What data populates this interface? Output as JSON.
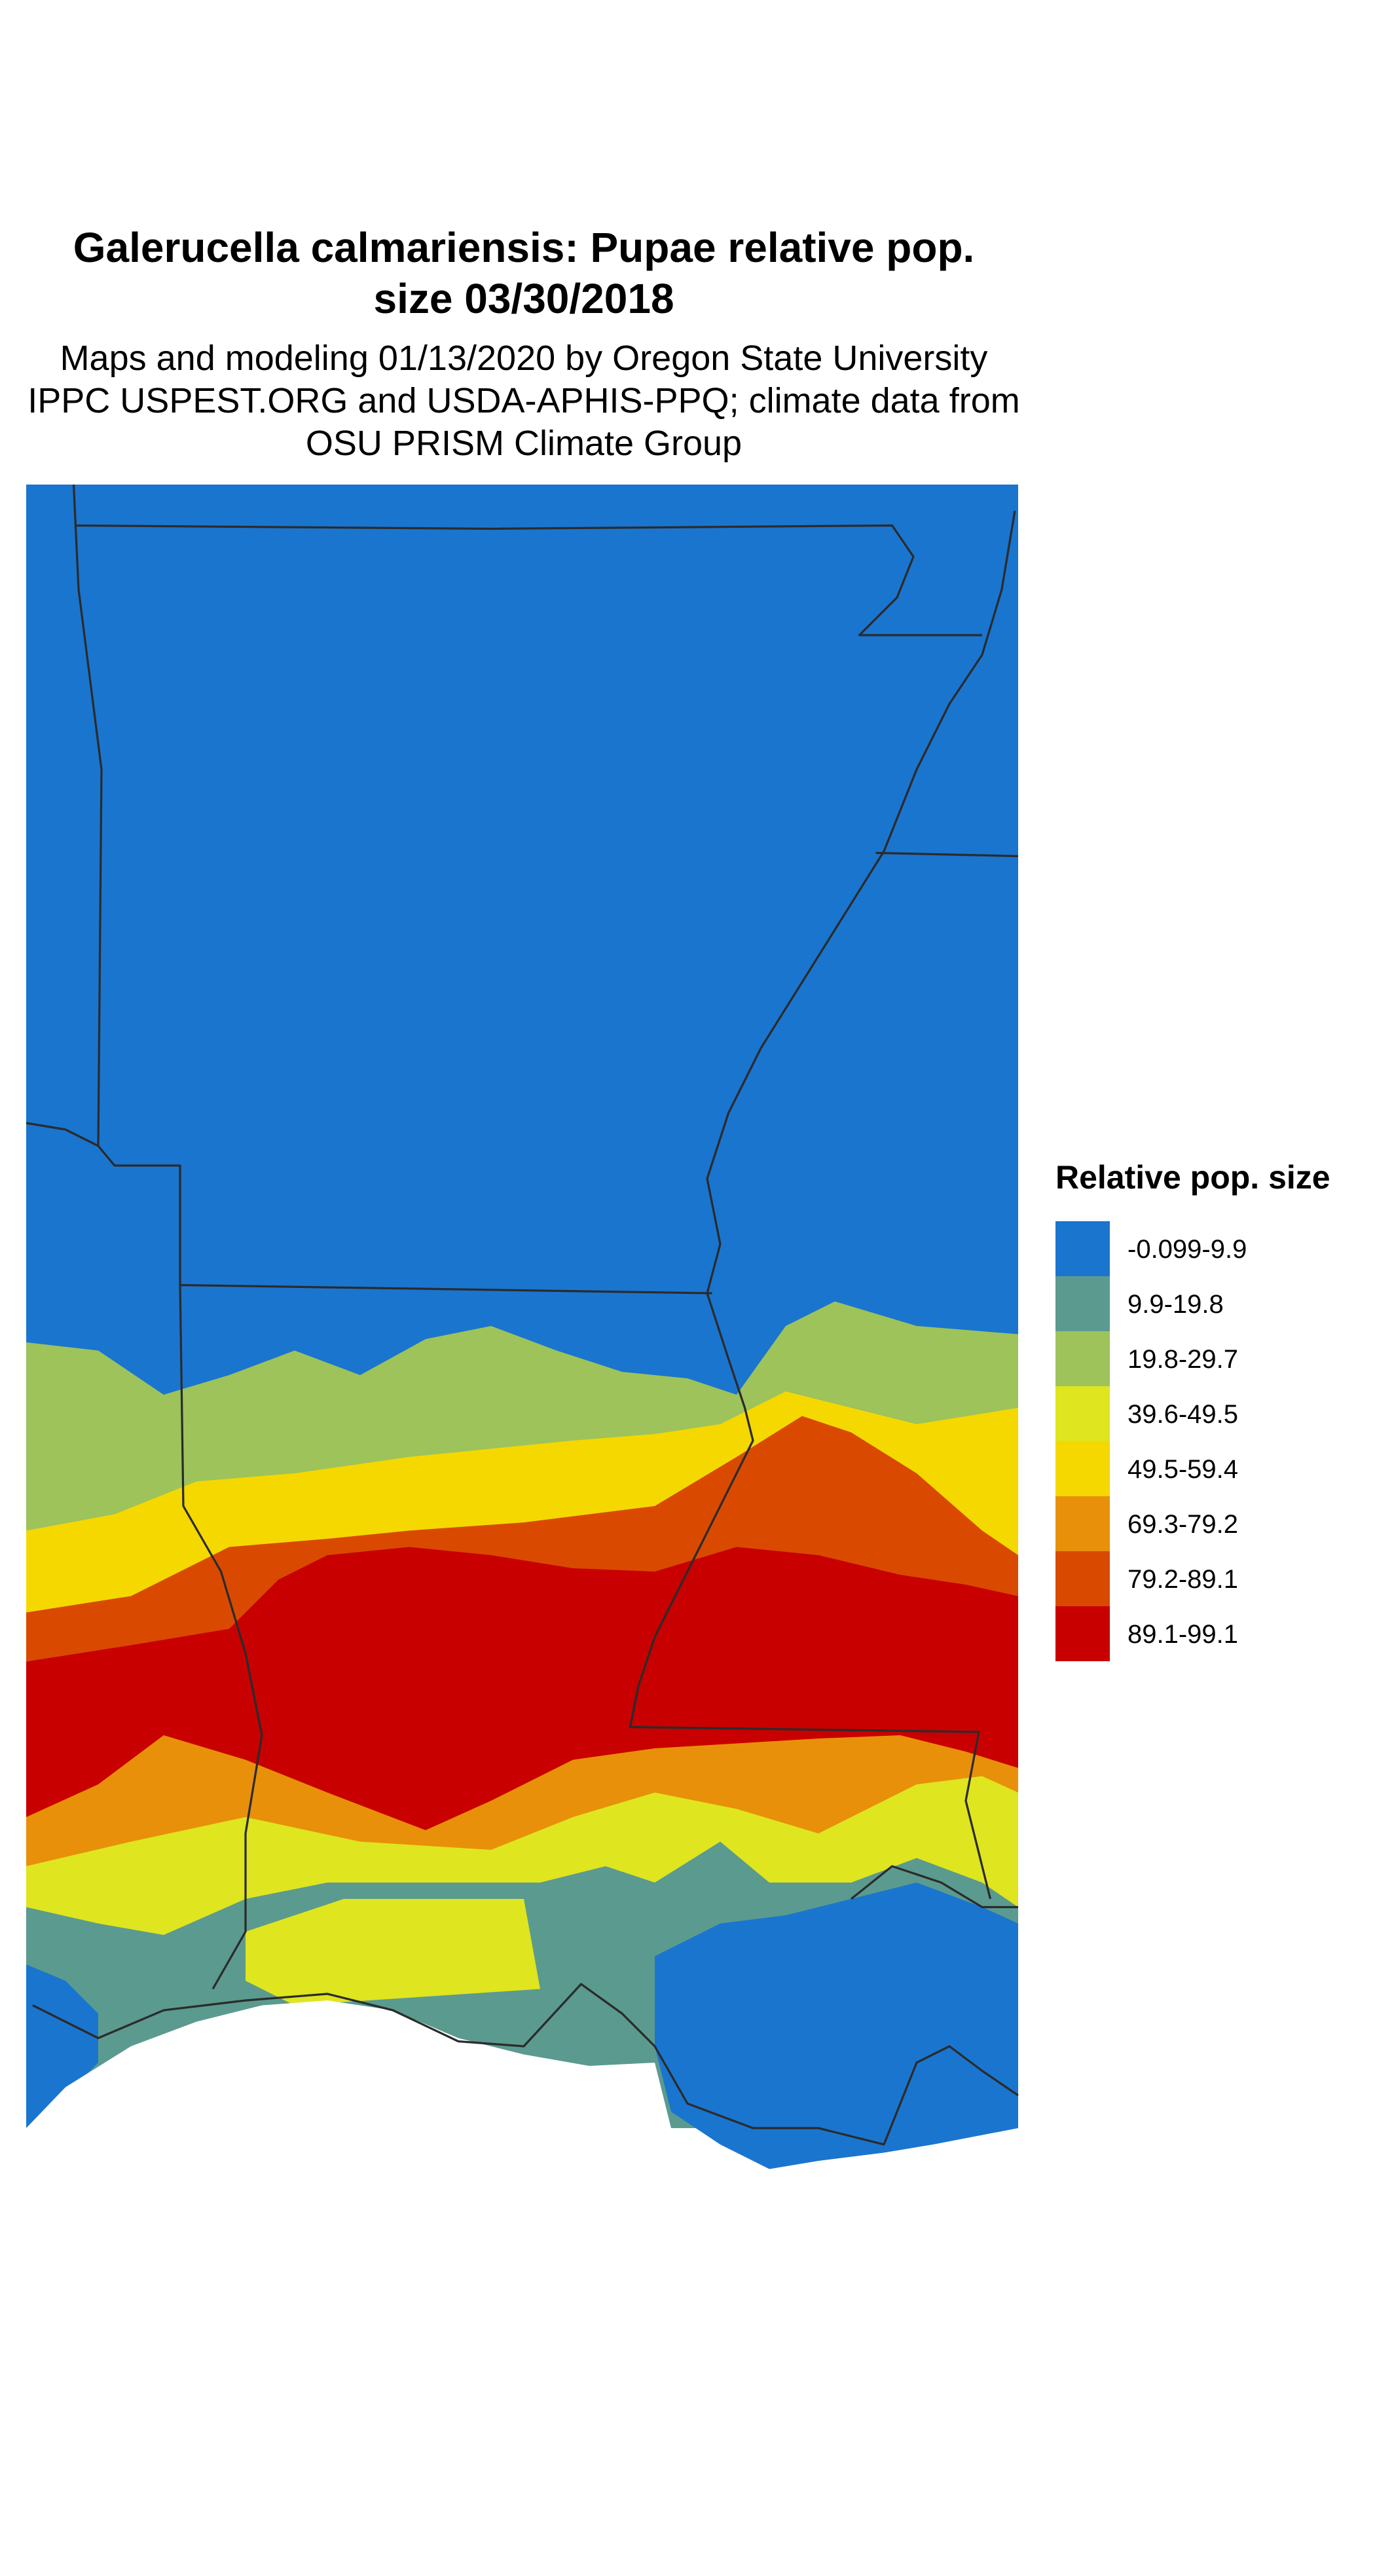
{
  "title": [
    "Galerucella calmariensis: Pupae relative pop.",
    "size 03/30/2018"
  ],
  "subtitle": [
    "Maps and modeling 01/13/2020 by Oregon State University",
    "IPPC USPEST.ORG and USDA-APHIS-PPQ; climate data from",
    "OSU PRISM Climate Group"
  ],
  "legend": {
    "title": "Relative pop. size",
    "items": [
      {
        "label": "-0.099-9.9",
        "color": "#1a75cf"
      },
      {
        "label": "9.9-19.8",
        "color": "#5b9a8f"
      },
      {
        "label": "19.8-29.7",
        "color": "#9dc35a"
      },
      {
        "label": "39.6-49.5",
        "color": "#dfe51f"
      },
      {
        "label": "49.5-59.4",
        "color": "#f5d800"
      },
      {
        "label": "69.3-79.2",
        "color": "#e8900a"
      },
      {
        "label": "79.2-89.1",
        "color": "#d94a00"
      },
      {
        "label": "89.1-99.1",
        "color": "#c80000"
      }
    ]
  }
}
